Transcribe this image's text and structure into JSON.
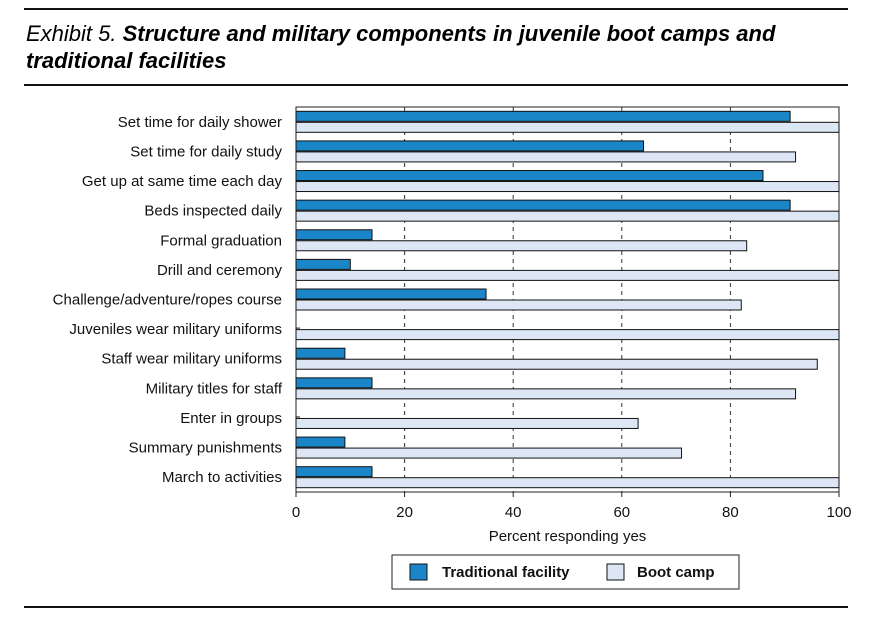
{
  "header": {
    "prefix": "Exhibit 5.",
    "title": "Structure and military components in juvenile boot camps and traditional facilities"
  },
  "chart_data": {
    "type": "bar",
    "orientation": "horizontal",
    "categories": [
      "Set time for daily shower",
      "Set time for daily study",
      "Get up at same time each day",
      "Beds inspected daily",
      "Formal graduation",
      "Drill and ceremony",
      "Challenge/adventure/ropes course",
      "Juveniles wear military uniforms",
      "Staff wear military uniforms",
      "Military titles for staff",
      "Enter in groups",
      "Summary punishments",
      "March to activities"
    ],
    "series": [
      {
        "name": "Traditional facility",
        "color": "#1a86c8",
        "values": [
          91,
          64,
          86,
          91,
          14,
          10,
          35,
          0,
          9,
          14,
          0,
          9,
          14
        ]
      },
      {
        "name": "Boot camp",
        "color": "#dce6f4",
        "values": [
          100,
          92,
          100,
          100,
          83,
          100,
          82,
          100,
          96,
          92,
          63,
          71,
          100
        ]
      }
    ],
    "xlabel": "Percent responding yes",
    "xlim": [
      0,
      100
    ],
    "xticks": [
      0,
      20,
      40,
      60,
      80,
      100
    ],
    "grid": "vertical-dashed",
    "legend_position": "bottom"
  }
}
